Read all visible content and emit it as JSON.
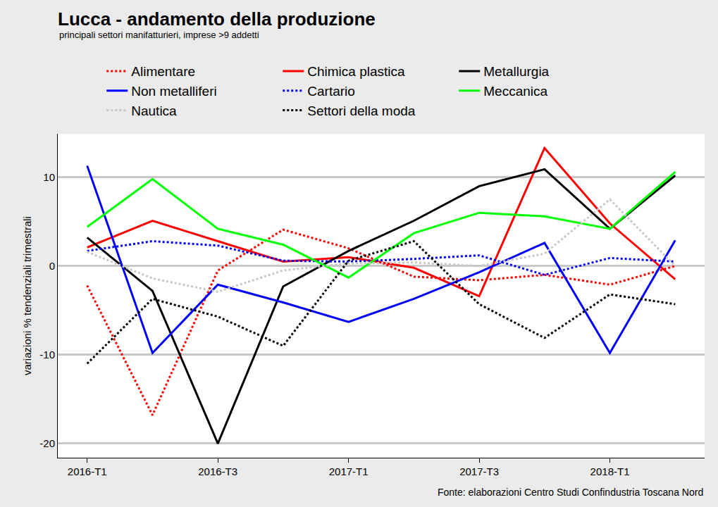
{
  "chart_data": {
    "type": "line",
    "title": "Lucca - andamento della produzione",
    "subtitle": "principali settori manifatturieri, imprese >9 addetti",
    "y_label": "variazioni % tendenziali trimestrali",
    "source": "Fonte: elaborazioni Centro Studi Confindustria Toscana Nord",
    "categories": [
      "2016-T1",
      null,
      "2016-T3",
      null,
      "2017-T1",
      null,
      "2017-T3",
      null,
      "2018-T1",
      null
    ],
    "series": [
      {
        "name": "Alimentare",
        "color": "#ff0000",
        "line_style": "dotted",
        "values": [
          -2.2,
          -16.8,
          -0.5,
          4.1,
          2.0,
          -1.2,
          -1.6,
          -1.0,
          -2.1,
          0.0
        ]
      },
      {
        "name": "Chimica plastica",
        "color": "#ff0000",
        "line_style": "solid",
        "values": [
          2.1,
          5.1,
          2.8,
          0.5,
          1.0,
          -0.2,
          -3.4,
          13.3,
          4.8,
          -1.5
        ]
      },
      {
        "name": "Metallurgia",
        "color": "#000000",
        "line_style": "solid",
        "values": [
          3.2,
          -2.8,
          -20.0,
          -2.3,
          1.7,
          5.1,
          9.0,
          10.9,
          4.2,
          10.2
        ]
      },
      {
        "name": "Non metalliferi",
        "color": "#0000ff",
        "line_style": "solid",
        "values": [
          11.3,
          -9.8,
          -2.1,
          -4.1,
          -6.3,
          -3.7,
          -0.7,
          2.6,
          -9.8,
          2.9
        ]
      },
      {
        "name": "Cartario",
        "color": "#0000ff",
        "line_style": "dotted",
        "values": [
          1.7,
          2.8,
          2.3,
          0.6,
          0.5,
          0.8,
          1.2,
          -1.0,
          0.9,
          0.5
        ]
      },
      {
        "name": "Meccanica",
        "color": "#00ff00",
        "line_style": "solid",
        "values": [
          4.4,
          9.8,
          4.2,
          2.4,
          -1.3,
          3.7,
          6.0,
          5.6,
          4.2,
          10.6
        ]
      },
      {
        "name": "Nautica",
        "color": "#c8c8c8",
        "line_style": "dotted",
        "values": [
          1.6,
          -1.4,
          -2.9,
          -0.5,
          0.3,
          0.4,
          0.0,
          1.4,
          7.5,
          0.0
        ]
      },
      {
        "name": "Settori della moda",
        "color": "#000000",
        "line_style": "dotted",
        "values": [
          -11.0,
          -3.7,
          -5.7,
          -9.0,
          0.6,
          2.8,
          -4.3,
          -8.1,
          -3.2,
          -4.3
        ]
      }
    ],
    "ylim": [
      -21.6,
      14.9
    ],
    "yticks": [
      -20,
      -10,
      0,
      10
    ],
    "grid": true
  }
}
